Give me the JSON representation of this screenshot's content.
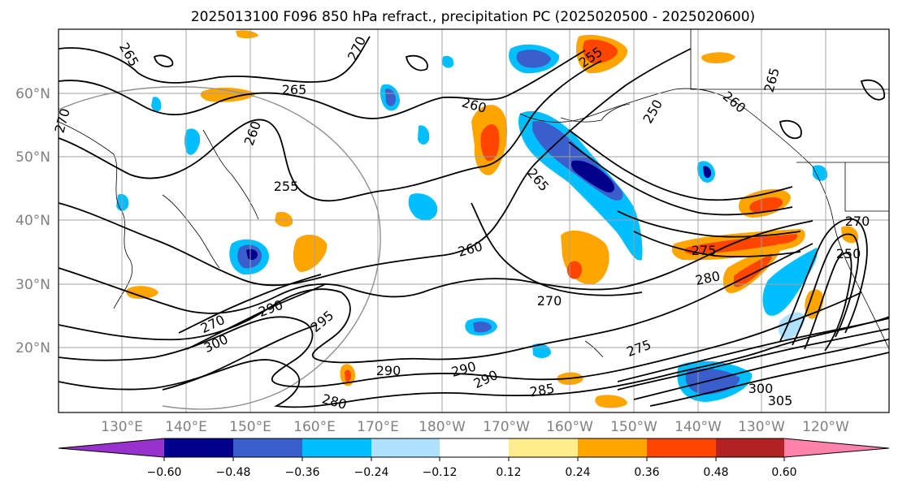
{
  "figure": {
    "title": "2025013100 F096 850 hPa refract., precipitation PC (2025020500 - 2025020600)"
  },
  "map": {
    "lat_labels": [
      "60°N",
      "50°N",
      "40°N",
      "30°N",
      "20°N"
    ],
    "lon_labels": [
      "130°E",
      "140°E",
      "150°E",
      "160°E",
      "170°E",
      "180°W",
      "170°W",
      "160°W",
      "150°W",
      "140°W",
      "130°W",
      "120°W"
    ]
  },
  "contour_labels": [
    {
      "id": "c1",
      "text": "265"
    },
    {
      "id": "c2",
      "text": "260"
    },
    {
      "id": "c3",
      "text": "255"
    },
    {
      "id": "c4",
      "text": "270"
    },
    {
      "id": "c5",
      "text": "255"
    },
    {
      "id": "c6",
      "text": "260"
    },
    {
      "id": "c7",
      "text": "250"
    },
    {
      "id": "c8",
      "text": "265"
    },
    {
      "id": "c9",
      "text": "260"
    },
    {
      "id": "c10",
      "text": "275"
    },
    {
      "id": "c11",
      "text": "280"
    },
    {
      "id": "c12",
      "text": "270"
    },
    {
      "id": "c13",
      "text": "295"
    },
    {
      "id": "c14",
      "text": "290"
    },
    {
      "id": "c15",
      "text": "290"
    },
    {
      "id": "c16",
      "text": "290"
    },
    {
      "id": "c17",
      "text": "285"
    },
    {
      "id": "c18",
      "text": "305"
    },
    {
      "id": "c19",
      "text": "300"
    },
    {
      "id": "c20",
      "text": "275"
    },
    {
      "id": "c21",
      "text": "280"
    },
    {
      "id": "c22",
      "text": "270"
    },
    {
      "id": "c23",
      "text": "300"
    },
    {
      "id": "c24",
      "text": "290"
    },
    {
      "id": "c25",
      "text": "265"
    },
    {
      "id": "c26",
      "text": "270"
    },
    {
      "id": "c27",
      "text": "250"
    },
    {
      "id": "c28",
      "text": "260"
    },
    {
      "id": "c29",
      "text": "265"
    },
    {
      "id": "c30",
      "text": "270"
    }
  ],
  "colorbar": {
    "tick_labels": [
      "−0.60",
      "−0.48",
      "−0.36",
      "−0.24",
      "−0.12",
      "0.12",
      "0.24",
      "0.36",
      "0.48",
      "0.60"
    ],
    "colors": [
      "#9932cc",
      "#00008b",
      "#3a5fcd",
      "#00bfff",
      "#b0e2ff",
      "#ffffff",
      "#ffec8b",
      "#ffa500",
      "#ff4500",
      "#b22222",
      "#ff82ab"
    ]
  }
}
